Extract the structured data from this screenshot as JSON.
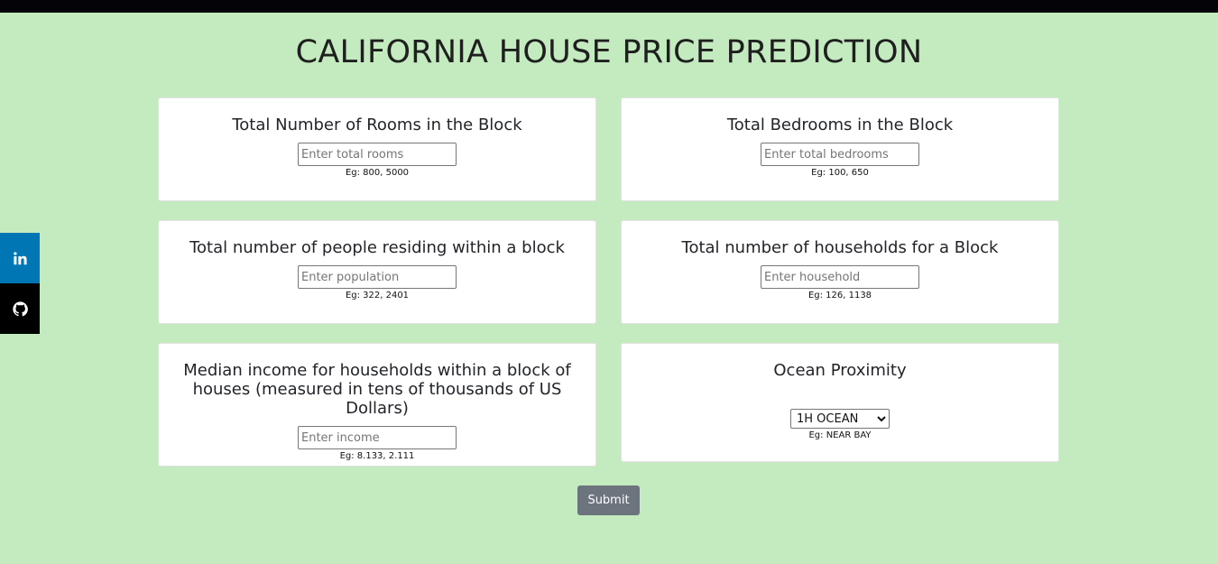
{
  "page": {
    "title": "CALIFORNIA HOUSE PRICE PREDICTION"
  },
  "fields": {
    "rooms": {
      "label": "Total Number of Rooms in the Block",
      "placeholder": "Enter total rooms",
      "value": "",
      "hint": "Eg: 800, 5000"
    },
    "bedrooms": {
      "label": "Total Bedrooms in the Block",
      "placeholder": "Enter total bedrooms",
      "value": "",
      "hint": "Eg: 100, 650"
    },
    "population": {
      "label": "Total number of people residing within a block",
      "placeholder": "Enter population",
      "value": "",
      "hint": "Eg: 322, 2401"
    },
    "households": {
      "label": "Total number of households for a Block",
      "placeholder": "Enter household",
      "value": "",
      "hint": "Eg: 126, 1138"
    },
    "income": {
      "label": "Median income for households within a block of houses (measured in tens of thousands of US Dollars)",
      "placeholder": "Enter income",
      "value": "",
      "hint": "Eg: 8.133, 2.111"
    },
    "ocean_proximity": {
      "label": "Ocean Proximity",
      "selected": "1H OCEAN",
      "hint": "Eg: NEAR BAY"
    }
  },
  "submit_label": "Submit",
  "social": {
    "linkedin_icon": "linkedin-icon",
    "github_icon": "github-icon"
  },
  "colors": {
    "background": "#c4ebbf",
    "topbar": "#040308",
    "linkedin": "#0077b5",
    "github": "#000000",
    "submit": "#6c757d"
  }
}
